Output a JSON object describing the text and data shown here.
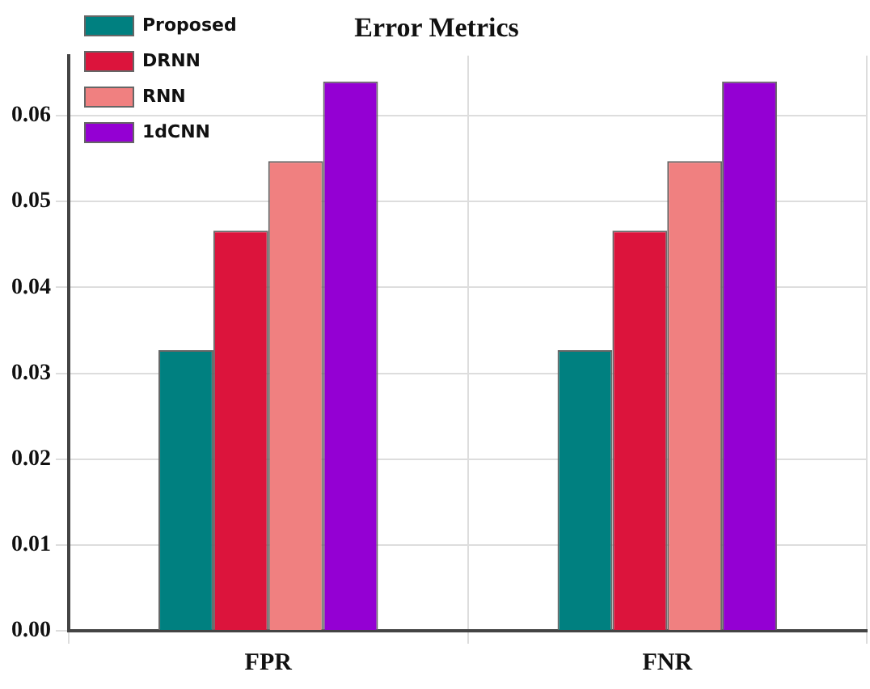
{
  "chart_data": {
    "type": "bar",
    "title": "Error Metrics",
    "categories": [
      "FPR",
      "FNR"
    ],
    "series": [
      {
        "name": "Proposed",
        "color": "#008080",
        "values": [
          0.0327,
          0.0327
        ]
      },
      {
        "name": "DRNN",
        "color": "#dc143c",
        "values": [
          0.0466,
          0.0466
        ]
      },
      {
        "name": "RNN",
        "color": "#f08080",
        "values": [
          0.0547,
          0.0547
        ]
      },
      {
        "name": "1dCNN",
        "color": "#9400d3",
        "values": [
          0.064,
          0.064
        ]
      }
    ],
    "ylim": [
      0,
      0.067
    ],
    "yticks": [
      {
        "value": 0,
        "label": "0.00"
      },
      {
        "value": 0.01,
        "label": "0.01"
      },
      {
        "value": 0.02,
        "label": "0.02"
      },
      {
        "value": 0.03,
        "label": "0.03"
      },
      {
        "value": 0.04,
        "label": "0.04"
      },
      {
        "value": 0.05,
        "label": "0.05"
      },
      {
        "value": 0.06,
        "label": "0.06"
      }
    ],
    "grid": true,
    "legend": "top left"
  }
}
